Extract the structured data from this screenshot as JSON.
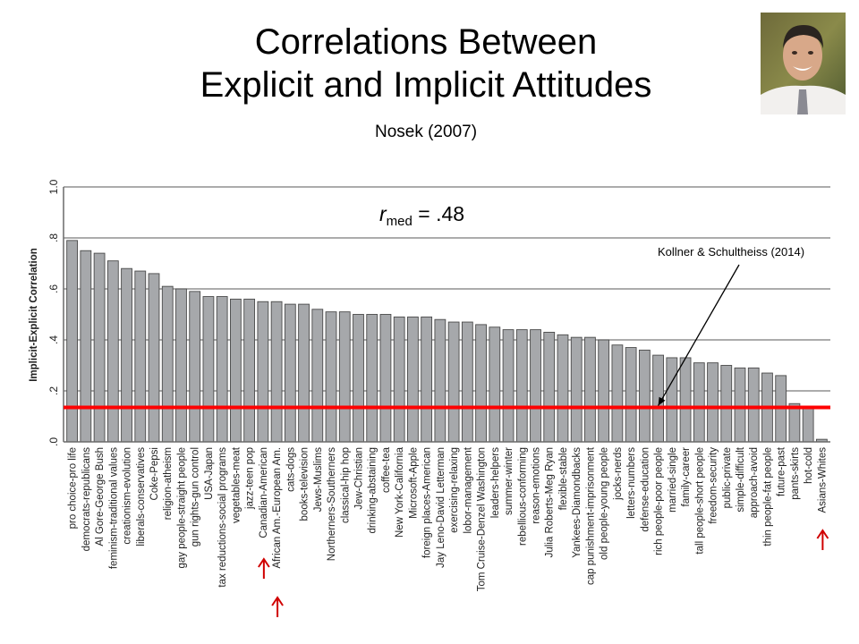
{
  "slide": {
    "title_line1": "Correlations Between",
    "title_line2": "Explicit and Implicit Attitudes",
    "subtitle": "Nosek (2007)"
  },
  "chart_data": {
    "type": "bar",
    "ylabel": "Implicit-Explicit Correlation",
    "xlabel": "",
    "ylim": [
      0,
      1.0
    ],
    "yticks": [
      0.0,
      0.2,
      0.4,
      0.6,
      0.8,
      1.0
    ],
    "ytick_labels": [
      ".0",
      ".2",
      ".4",
      ".6",
      ".8",
      "1.0"
    ],
    "grid": true,
    "categories": [
      "pro choice-pro life",
      "democrats-republicans",
      "Al Gore-George Bush",
      "feminism-traditional values",
      "creationism-evolution",
      "liberals-conservatives",
      "Coke-Pepsi",
      "religion-atheism",
      "gay people-straight people",
      "gun rights-gun control",
      "USA-Japan",
      "tax reductions-social programs",
      "vegetables-meat",
      "jazz-teen pop",
      "Canadian-American",
      "African Am.-European Am.",
      "cats-dogs",
      "books-television",
      "Jews-Muslims",
      "Northerners-Southerners",
      "classical-hip hop",
      "Jew-Christian",
      "drinking-abstaining",
      "coffee-tea",
      "New York-California",
      "Microsoft-Apple",
      "foreign places-American",
      "Jay Leno-David Letterman",
      "exercising-relaxing",
      "lobor-management",
      "Tom Cruise-Denzel Washington",
      "leaders-helpers",
      "summer-winter",
      "rebellious-conforming",
      "reason-emotions",
      "Julia Roberts-Meg Ryan",
      "flexible-stable",
      "Yankees-Diamondbacks",
      "cap punishment-imprisonment",
      "old people-young people",
      "jocks-nerds",
      "letters-numbers",
      "defense-education",
      "rich people-poor people",
      "married-single",
      "family-career",
      "tall people-short people",
      "freedom-security",
      "public-private",
      "simple-difficult",
      "approach-avoid",
      "thin people-fat people",
      "future-past",
      "pants-skirts",
      "hot-cold",
      "Asians-Whites"
    ],
    "values": [
      0.79,
      0.75,
      0.74,
      0.71,
      0.68,
      0.67,
      0.66,
      0.61,
      0.6,
      0.59,
      0.57,
      0.57,
      0.56,
      0.56,
      0.55,
      0.55,
      0.54,
      0.54,
      0.52,
      0.51,
      0.51,
      0.5,
      0.5,
      0.5,
      0.49,
      0.49,
      0.49,
      0.48,
      0.47,
      0.47,
      0.46,
      0.45,
      0.44,
      0.44,
      0.44,
      0.43,
      0.42,
      0.41,
      0.41,
      0.4,
      0.38,
      0.37,
      0.36,
      0.34,
      0.33,
      0.33,
      0.31,
      0.31,
      0.3,
      0.29,
      0.29,
      0.27,
      0.26,
      0.15,
      0.14,
      0.01
    ],
    "bar_color": "#a6a8ab",
    "bar_edge_color": "#4a4a4a",
    "reference_line": {
      "value": 0.135,
      "color": "#ff0000"
    },
    "median_label": {
      "symbol": "r",
      "subscript": "med",
      "text": " = .48"
    },
    "annotation": {
      "text": "Kollner & Schultheiss (2014)",
      "target_category": "rich people-poor people"
    },
    "highlighted_categories": [
      "Canadian-American",
      "African Am.-European Am.",
      "Asians-Whites"
    ],
    "highlight_color": "#d00000"
  }
}
